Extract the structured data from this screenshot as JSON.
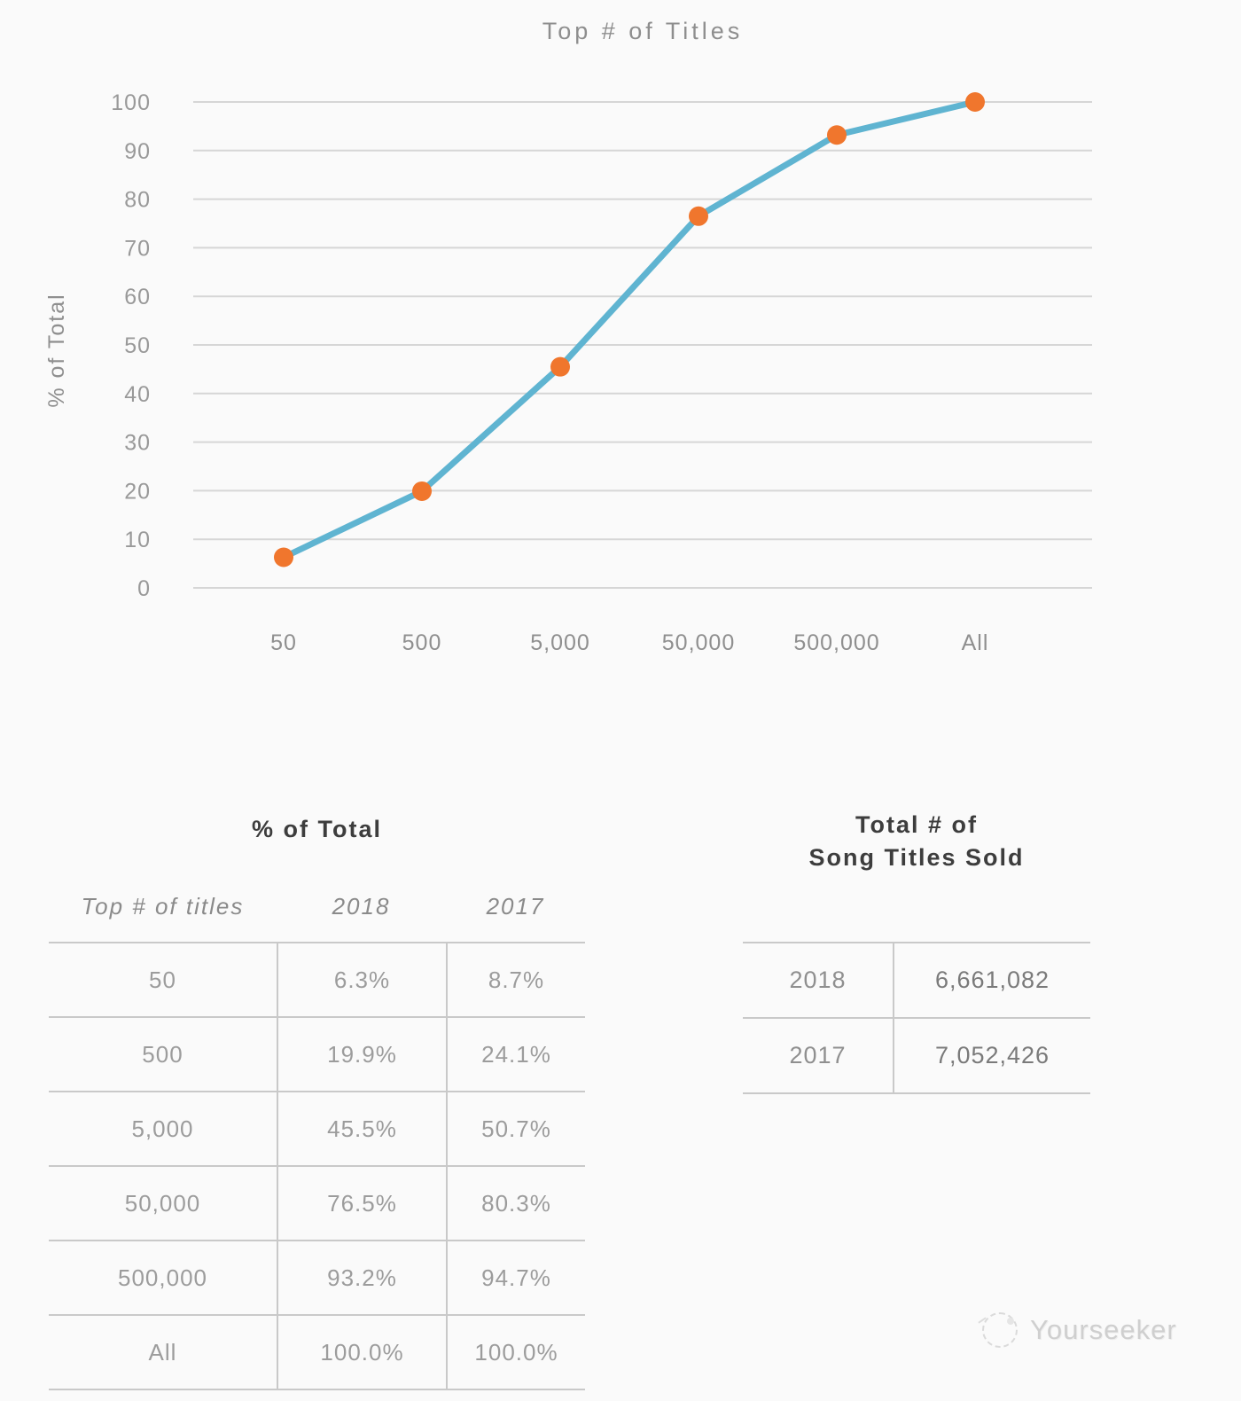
{
  "page": {
    "background": "#fafafa"
  },
  "chart_data": {
    "type": "line",
    "title": "Top # of Titles",
    "xlabel": "",
    "ylabel": "% of Total",
    "categories": [
      "50",
      "500",
      "5,000",
      "50,000",
      "500,000",
      "All"
    ],
    "series": [
      {
        "name": "2018",
        "values": [
          6.3,
          19.9,
          45.5,
          76.5,
          93.2,
          100.0
        ]
      }
    ],
    "ylim": [
      0,
      100
    ],
    "ytick_step": 10,
    "grid": true,
    "legend": "none",
    "line_color": "#5fb4d1",
    "marker_color": "#f0762d",
    "gridline_color": "#d6d6d6",
    "tick_color": "#999999"
  },
  "pct_table": {
    "title": "% of Total",
    "headers": [
      "Top # of titles",
      "2018",
      "2017"
    ],
    "rows": [
      [
        "50",
        "6.3%",
        "8.7%"
      ],
      [
        "500",
        "19.9%",
        "24.1%"
      ],
      [
        "5,000",
        "45.5%",
        "50.7%"
      ],
      [
        "50,000",
        "76.5%",
        "80.3%"
      ],
      [
        "500,000",
        "93.2%",
        "94.7%"
      ],
      [
        "All",
        "100.0%",
        "100.0%"
      ]
    ]
  },
  "totals_table": {
    "title_line1": "Total # of",
    "title_line2": "Song Titles Sold",
    "rows": [
      [
        "2018",
        "6,661,082"
      ],
      [
        "2017",
        "7,052,426"
      ]
    ]
  },
  "watermark": {
    "label": "Yourseeker",
    "icon": "yourseeker-logo-icon"
  }
}
